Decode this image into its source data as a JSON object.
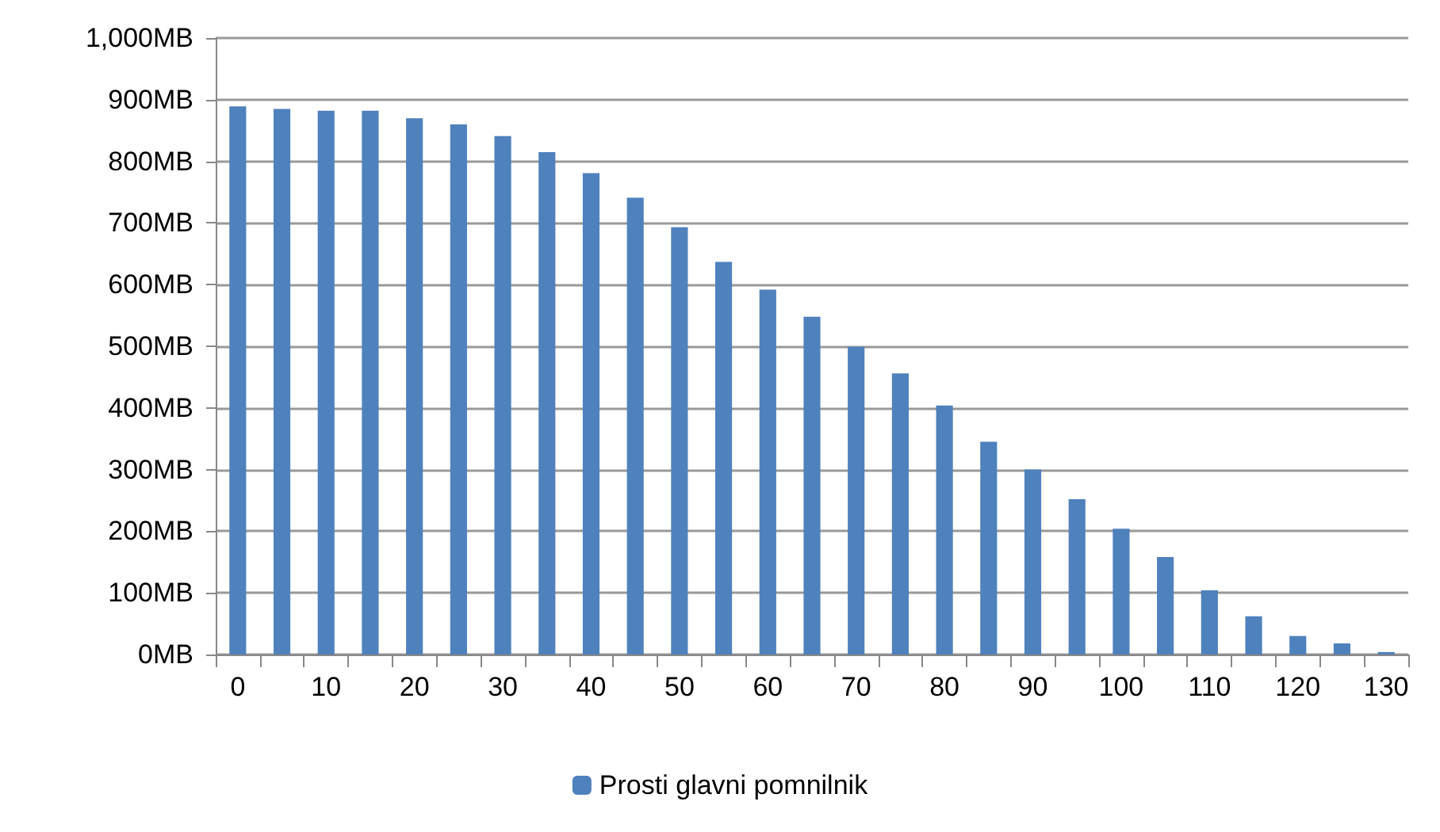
{
  "chart_data": {
    "type": "bar",
    "categories": [
      "0",
      null,
      "10",
      null,
      "20",
      null,
      "30",
      null,
      "40",
      null,
      "50",
      null,
      "60",
      null,
      "70",
      null,
      "80",
      null,
      "90",
      null,
      "100",
      null,
      "110",
      null,
      "120",
      null,
      "130"
    ],
    "series": [
      {
        "name": "Prosti glavni pomnilnik",
        "color": "#4f81bd",
        "values": [
          889,
          885,
          882,
          882,
          870,
          860,
          841,
          815,
          781,
          741,
          693,
          637,
          592,
          548,
          499,
          456,
          404,
          345,
          300,
          252,
          204,
          158,
          104,
          62,
          30,
          18,
          4
        ]
      }
    ],
    "ylim": [
      0,
      1000
    ],
    "yticks": [
      {
        "value": 0,
        "label": "0MB"
      },
      {
        "value": 100,
        "label": "100MB"
      },
      {
        "value": 200,
        "label": "200MB"
      },
      {
        "value": 300,
        "label": "300MB"
      },
      {
        "value": 400,
        "label": "400MB"
      },
      {
        "value": 500,
        "label": "500MB"
      },
      {
        "value": 600,
        "label": "600MB"
      },
      {
        "value": 700,
        "label": "700MB"
      },
      {
        "value": 800,
        "label": "800MB"
      },
      {
        "value": 900,
        "label": "900MB"
      },
      {
        "value": 1000,
        "label": "1,000MB"
      }
    ],
    "grid": "y",
    "legend": "bottom"
  }
}
